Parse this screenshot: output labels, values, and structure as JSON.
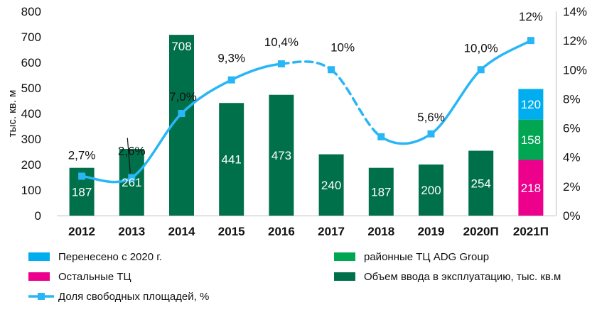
{
  "chart_data": {
    "type": "bar",
    "ylabel": "тыс. кв. м",
    "ylim": [
      0,
      800
    ],
    "yticks": [
      "0",
      "100",
      "200",
      "300",
      "400",
      "500",
      "600",
      "700",
      "800"
    ],
    "y2lim": [
      0,
      14
    ],
    "y2ticks": [
      "0%",
      "2%",
      "4%",
      "6%",
      "8%",
      "10%",
      "12%",
      "14%"
    ],
    "categories": [
      "2012",
      "2013",
      "2014",
      "2015",
      "2016",
      "2017",
      "2018",
      "2019",
      "2020П",
      "2021П"
    ],
    "series": [
      {
        "name": "Объем ввода в эксплуатацию, тыс. кв.м",
        "color": "#00704A",
        "values": [
          187,
          261,
          708,
          441,
          473,
          240,
          187,
          200,
          254,
          null
        ],
        "labels": [
          "187",
          "261",
          "708",
          "441",
          "473",
          "240",
          "187",
          "200",
          "254",
          ""
        ]
      },
      {
        "name": "Остальные ТЦ",
        "color": "#EC008C",
        "values": [
          null,
          null,
          null,
          null,
          null,
          null,
          null,
          null,
          null,
          218
        ],
        "labels": [
          "",
          "",
          "",
          "",
          "",
          "",
          "",
          "",
          "",
          "218"
        ]
      },
      {
        "name": "районные ТЦ ADG Group",
        "color": "#00A651",
        "values": [
          null,
          null,
          null,
          null,
          null,
          null,
          null,
          null,
          null,
          158
        ],
        "labels": [
          "",
          "",
          "",
          "",
          "",
          "",
          "",
          "",
          "",
          "158"
        ]
      },
      {
        "name": "Перенесено с 2020 г.",
        "color": "#00AEEF",
        "values": [
          null,
          null,
          null,
          null,
          null,
          null,
          null,
          null,
          null,
          120
        ],
        "labels": [
          "",
          "",
          "",
          "",
          "",
          "",
          "",
          "",
          "",
          "120"
        ]
      }
    ],
    "line": {
      "name": "Доля свободных площадей, %",
      "color": "#29B6F6",
      "axis": "right",
      "values": [
        2.7,
        2.6,
        7.0,
        9.3,
        10.4,
        10,
        5.4,
        5.6,
        10.0,
        12
      ],
      "labels": [
        "2,7%",
        "2,6%",
        "7,0%",
        "9,3%",
        "10,4%",
        "10%",
        "",
        "5,6%",
        "10,0%",
        "12%"
      ],
      "dashed_segments": [
        [
          4,
          6
        ]
      ]
    },
    "legend": [
      {
        "key": "transferred",
        "label": "Перенесено с 2020 г.",
        "color": "#00AEEF",
        "kind": "box"
      },
      {
        "key": "adg",
        "label": "районные ТЦ ADG Group",
        "color": "#00A651",
        "kind": "box"
      },
      {
        "key": "other",
        "label": "Остальные ТЦ",
        "color": "#EC008C",
        "kind": "box"
      },
      {
        "key": "volume",
        "label": "Объем ввода в эксплуатацию, тыс. кв.м",
        "color": "#00704A",
        "kind": "box"
      },
      {
        "key": "vacancy",
        "label": "Доля свободных площадей, %",
        "color": "#29B6F6",
        "kind": "line"
      }
    ],
    "legend_position": "bottom",
    "grid": false
  }
}
